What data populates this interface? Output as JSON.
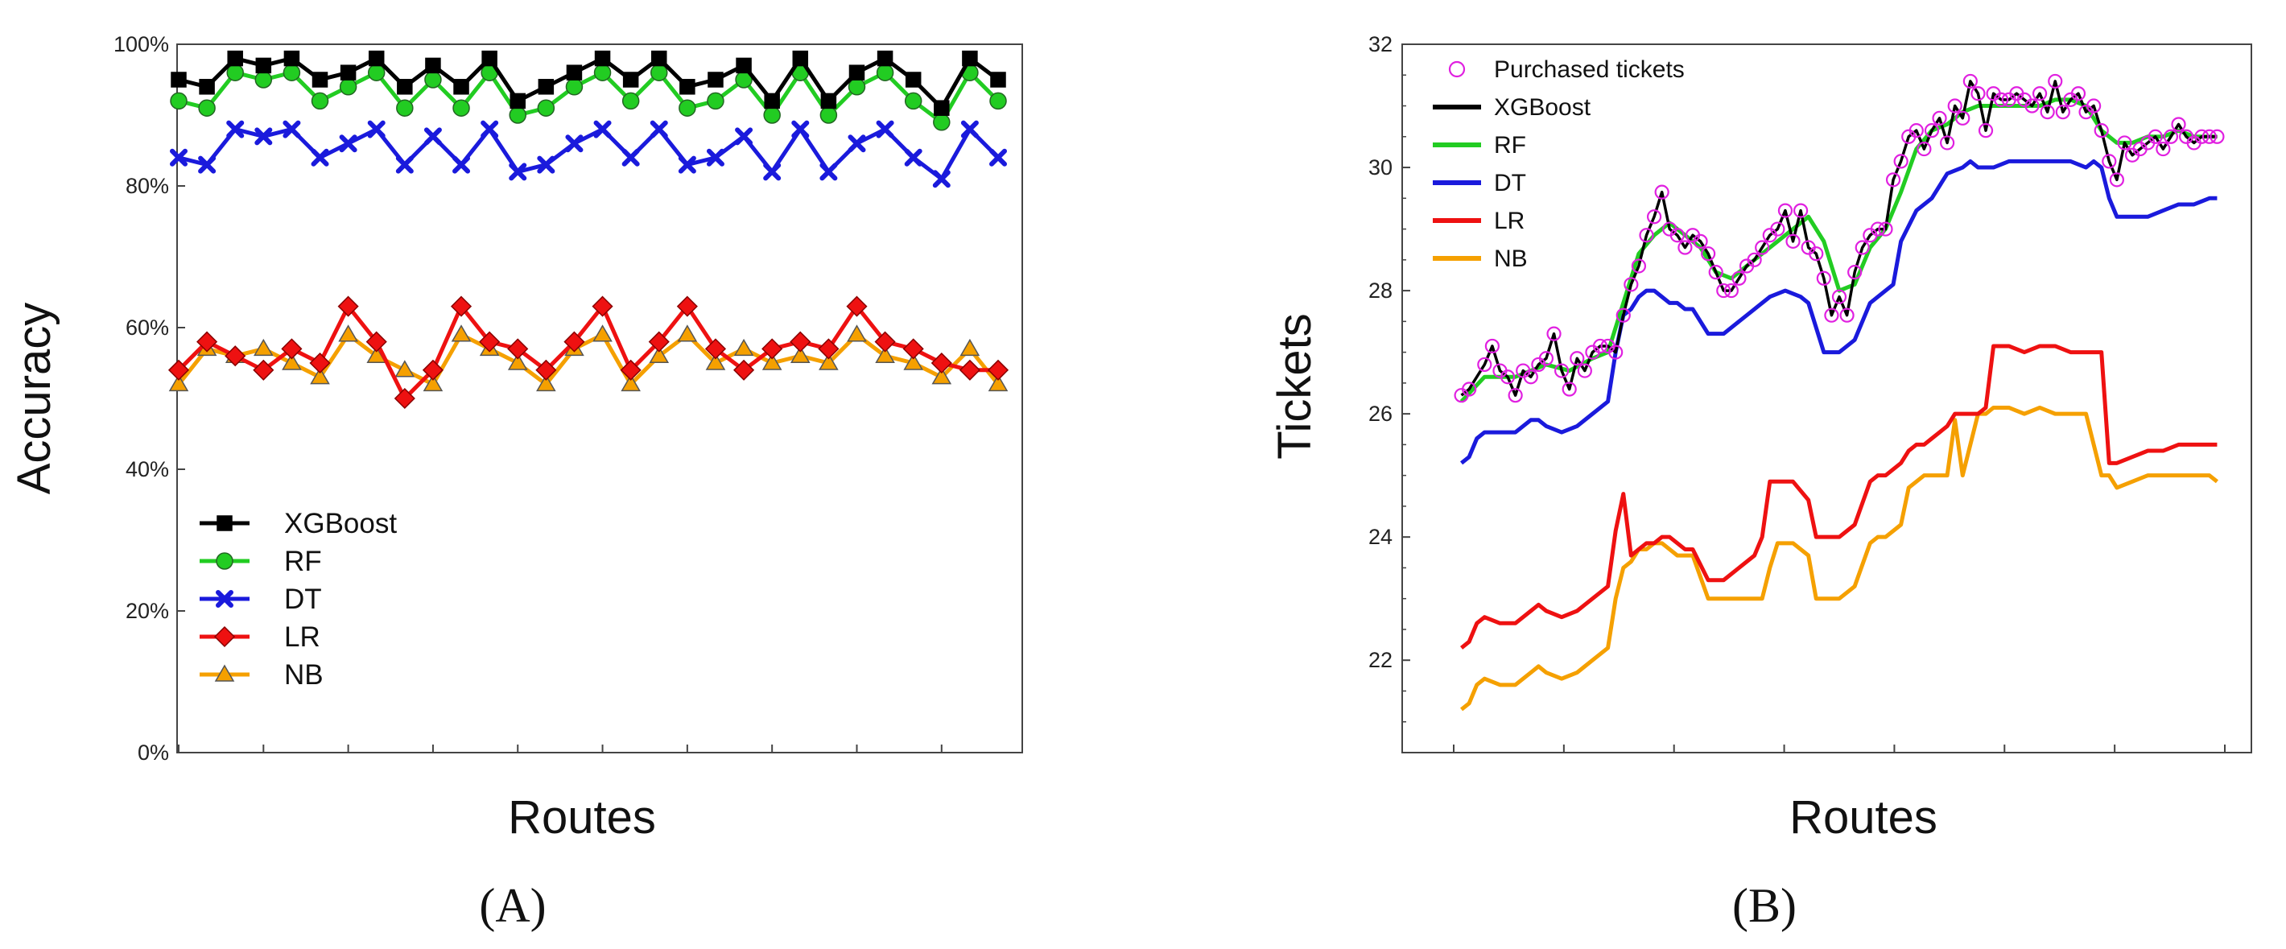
{
  "chart_data": [
    {
      "panel": "A",
      "panel_label": "(A)",
      "type": "line",
      "xlabel": "Routes",
      "ylabel": "Accuracy",
      "ylim": [
        0,
        100
      ],
      "ytick_labels": [
        "0%",
        "20%",
        "40%",
        "60%",
        "80%",
        "100%"
      ],
      "ytick_values": [
        0,
        20,
        40,
        60,
        80,
        100
      ],
      "n_routes": 30,
      "legend_position": "lower-left",
      "series": [
        {
          "name": "XGBoost",
          "color": "#000000",
          "marker": "square",
          "values": [
            95,
            94,
            98,
            97,
            98,
            95,
            96,
            98,
            94,
            97,
            94,
            98,
            92,
            94,
            96,
            98,
            95,
            98,
            94,
            95,
            97,
            92,
            98,
            92,
            96,
            98,
            95,
            91,
            98,
            95
          ]
        },
        {
          "name": "RF",
          "color": "#22cc22",
          "marker": "circle",
          "values": [
            92,
            91,
            96,
            95,
            96,
            92,
            94,
            96,
            91,
            95,
            91,
            96,
            90,
            91,
            94,
            96,
            92,
            96,
            91,
            92,
            95,
            90,
            96,
            90,
            94,
            96,
            92,
            89,
            96,
            92
          ]
        },
        {
          "name": "DT",
          "color": "#1a1adc",
          "marker": "x",
          "values": [
            84,
            83,
            88,
            87,
            88,
            84,
            86,
            88,
            83,
            87,
            83,
            88,
            82,
            83,
            86,
            88,
            84,
            88,
            83,
            84,
            87,
            82,
            88,
            82,
            86,
            88,
            84,
            81,
            88,
            84
          ]
        },
        {
          "name": "LR",
          "color": "#ee1111",
          "marker": "diamond",
          "values": [
            54,
            58,
            56,
            54,
            57,
            55,
            63,
            58,
            50,
            54,
            63,
            58,
            57,
            54,
            58,
            63,
            54,
            58,
            63,
            57,
            54,
            57,
            58,
            57,
            63,
            58,
            57,
            55,
            54,
            54
          ]
        },
        {
          "name": "NB",
          "color": "#f5a000",
          "marker": "triangle",
          "values": [
            52,
            57,
            56,
            57,
            55,
            53,
            59,
            56,
            54,
            52,
            59,
            57,
            55,
            52,
            57,
            59,
            52,
            56,
            59,
            55,
            57,
            55,
            56,
            55,
            59,
            56,
            55,
            53,
            57,
            52
          ]
        }
      ]
    },
    {
      "panel": "B",
      "panel_label": "(B)",
      "type": "line",
      "xlabel": "Routes",
      "ylabel": "Tickets",
      "ylim": [
        20.5,
        32
      ],
      "ytick_labels": [
        "22",
        "24",
        "26",
        "28",
        "30",
        "32"
      ],
      "ytick_values": [
        22,
        24,
        26,
        28,
        30,
        32
      ],
      "xlim": [
        0,
        100
      ],
      "n_xticks": 8,
      "legend_position": "top-left",
      "legend": [
        "Purchased tickets",
        "XGBoost",
        "RF",
        "DT",
        "LR",
        "NB"
      ],
      "purchased": {
        "name": "Purchased tickets",
        "color": "#e020e0",
        "x": [
          1,
          2,
          4,
          5,
          6,
          7,
          8,
          9,
          10,
          11,
          12,
          13,
          14,
          15,
          16,
          17,
          18,
          19,
          20,
          21,
          22,
          23,
          24,
          25,
          26,
          27,
          28,
          29,
          30,
          31,
          32,
          33,
          34,
          35,
          36,
          37,
          38,
          39,
          40,
          41,
          42,
          43,
          44,
          45,
          46,
          47,
          48,
          49,
          50,
          51,
          52,
          53,
          54,
          55,
          56,
          57,
          58,
          59,
          60,
          61,
          62,
          63,
          64,
          65,
          66,
          67,
          68,
          69,
          70,
          71,
          72,
          73,
          74,
          75,
          76,
          77,
          78,
          79,
          80,
          81,
          82,
          83,
          84,
          85,
          86,
          87,
          88,
          89,
          90,
          91,
          92,
          93,
          94,
          95,
          96,
          97,
          98,
          99
        ],
        "y": [
          26.3,
          26.4,
          26.8,
          27.1,
          26.7,
          26.6,
          26.3,
          26.7,
          26.6,
          26.8,
          26.9,
          27.3,
          26.7,
          26.4,
          26.9,
          26.7,
          27.0,
          27.1,
          27.1,
          27.0,
          27.6,
          28.1,
          28.4,
          28.9,
          29.2,
          29.6,
          29.0,
          28.9,
          28.7,
          28.9,
          28.8,
          28.6,
          28.3,
          28.0,
          28.0,
          28.2,
          28.4,
          28.5,
          28.7,
          28.9,
          29.0,
          29.3,
          28.8,
          29.3,
          28.7,
          28.6,
          28.2,
          27.6,
          27.9,
          27.6,
          28.3,
          28.7,
          28.9,
          29.0,
          29.0,
          29.8,
          30.1,
          30.5,
          30.6,
          30.3,
          30.6,
          30.8,
          30.4,
          31.0,
          30.8,
          31.4,
          31.2,
          30.6,
          31.2,
          31.1,
          31.1,
          31.2,
          31.1,
          31.0,
          31.2,
          30.9,
          31.4,
          30.9,
          31.1,
          31.2,
          30.9,
          31.0,
          30.6,
          30.1,
          29.8,
          30.4,
          30.2,
          30.3,
          30.4,
          30.5,
          30.3,
          30.5,
          30.7,
          30.5,
          30.4,
          30.5,
          30.5,
          30.5
        ]
      },
      "series": [
        {
          "name": "XGBoost",
          "color": "#000000",
          "x": [
            1,
            2,
            3,
            4,
            5,
            6,
            7,
            8,
            9,
            10,
            11,
            12,
            13,
            14,
            15,
            16,
            17,
            18,
            19,
            20,
            21,
            22,
            23,
            24,
            25,
            26,
            27,
            28,
            29,
            30,
            31,
            32,
            33,
            34,
            35,
            36,
            37,
            38,
            39,
            40,
            41,
            42,
            43,
            44,
            45,
            46,
            47,
            48,
            49,
            50,
            51,
            52,
            53,
            54,
            55,
            56,
            57,
            58,
            59,
            60,
            61,
            62,
            63,
            64,
            65,
            66,
            67,
            68,
            69,
            70,
            71,
            72,
            73,
            74,
            75,
            76,
            77,
            78,
            79,
            80,
            81,
            82,
            83,
            84,
            85,
            86,
            87,
            88,
            89,
            90,
            91,
            92,
            93,
            94,
            95,
            96,
            97,
            98,
            99
          ],
          "y": [
            26.3,
            26.4,
            26.6,
            26.8,
            27.1,
            26.7,
            26.6,
            26.3,
            26.7,
            26.6,
            26.8,
            26.9,
            27.3,
            26.7,
            26.4,
            26.9,
            26.7,
            27.0,
            27.1,
            27.1,
            27.0,
            27.6,
            28.1,
            28.4,
            28.9,
            29.2,
            29.6,
            29.0,
            28.9,
            28.7,
            28.9,
            28.8,
            28.6,
            28.3,
            28.0,
            28.0,
            28.2,
            28.4,
            28.5,
            28.7,
            28.9,
            29.0,
            29.3,
            28.8,
            29.3,
            28.7,
            28.6,
            28.2,
            27.6,
            27.9,
            27.6,
            28.3,
            28.7,
            28.9,
            29.0,
            29.0,
            29.8,
            30.1,
            30.5,
            30.6,
            30.3,
            30.6,
            30.8,
            30.4,
            31.0,
            30.8,
            31.4,
            31.2,
            30.6,
            31.2,
            31.1,
            31.1,
            31.2,
            31.1,
            31.0,
            31.2,
            30.9,
            31.4,
            30.9,
            31.1,
            31.2,
            30.9,
            31.0,
            30.6,
            30.1,
            29.8,
            30.4,
            30.2,
            30.3,
            30.4,
            30.5,
            30.3,
            30.5,
            30.7,
            30.5,
            30.4,
            30.5,
            30.5,
            30.5
          ]
        },
        {
          "name": "RF",
          "color": "#22cc22",
          "x": [
            1,
            4,
            8,
            12,
            15,
            18,
            20,
            22,
            24,
            26,
            28,
            30,
            32,
            34,
            36,
            38,
            40,
            42,
            44,
            46,
            48,
            50,
            52,
            54,
            56,
            58,
            60,
            62,
            64,
            66,
            68,
            70,
            72,
            74,
            76,
            78,
            80,
            82,
            84,
            86,
            88,
            90,
            92,
            94,
            96,
            98,
            99
          ],
          "y": [
            26.2,
            26.6,
            26.6,
            26.8,
            26.7,
            26.9,
            27.0,
            27.8,
            28.6,
            28.9,
            29.1,
            28.9,
            28.7,
            28.3,
            28.2,
            28.4,
            28.6,
            28.8,
            29.0,
            29.2,
            28.8,
            28.0,
            28.1,
            28.7,
            29.0,
            29.6,
            30.3,
            30.6,
            30.7,
            30.9,
            31.0,
            31.0,
            31.0,
            31.0,
            31.0,
            31.1,
            31.1,
            31.0,
            30.6,
            30.4,
            30.4,
            30.5,
            30.5,
            30.6,
            30.5,
            30.5,
            30.5
          ]
        },
        {
          "name": "DT",
          "color": "#1a1adc",
          "x": [
            1,
            2,
            3,
            4,
            6,
            8,
            10,
            11,
            12,
            14,
            16,
            18,
            20,
            21,
            22,
            23,
            24,
            25,
            26,
            27,
            28,
            29,
            30,
            31,
            33,
            35,
            37,
            39,
            41,
            43,
            45,
            46,
            48,
            49,
            50,
            52,
            54,
            56,
            57,
            58,
            60,
            62,
            64,
            66,
            67,
            68,
            70,
            72,
            74,
            76,
            78,
            80,
            82,
            83,
            84,
            85,
            86,
            88,
            90,
            92,
            94,
            96,
            98,
            99
          ],
          "y": [
            25.2,
            25.3,
            25.6,
            25.7,
            25.7,
            25.7,
            25.9,
            25.9,
            25.8,
            25.7,
            25.8,
            26.0,
            26.2,
            27.0,
            27.6,
            27.7,
            27.9,
            28.0,
            28.0,
            27.9,
            27.8,
            27.8,
            27.7,
            27.7,
            27.3,
            27.3,
            27.5,
            27.7,
            27.9,
            28.0,
            27.9,
            27.8,
            27.0,
            27.0,
            27.0,
            27.2,
            27.8,
            28.0,
            28.1,
            28.8,
            29.3,
            29.5,
            29.9,
            30.0,
            30.1,
            30.0,
            30.0,
            30.1,
            30.1,
            30.1,
            30.1,
            30.1,
            30.0,
            30.1,
            30.0,
            29.5,
            29.2,
            29.2,
            29.2,
            29.3,
            29.4,
            29.4,
            29.5,
            29.5
          ]
        },
        {
          "name": "LR",
          "color": "#ee1111",
          "x": [
            1,
            2,
            3,
            4,
            6,
            8,
            10,
            11,
            12,
            14,
            16,
            17,
            18,
            20,
            21,
            22,
            23,
            24,
            25,
            26,
            27,
            28,
            29,
            30,
            31,
            33,
            35,
            37,
            39,
            40,
            41,
            42,
            43,
            44,
            46,
            47,
            48,
            50,
            52,
            54,
            55,
            56,
            58,
            59,
            60,
            61,
            62,
            64,
            65,
            66,
            68,
            69,
            70,
            72,
            74,
            76,
            78,
            80,
            82,
            84,
            85,
            86,
            88,
            90,
            92,
            94,
            96,
            98,
            99
          ],
          "y": [
            22.2,
            22.3,
            22.6,
            22.7,
            22.6,
            22.6,
            22.8,
            22.9,
            22.8,
            22.7,
            22.8,
            22.9,
            23.0,
            23.2,
            24.1,
            24.7,
            23.7,
            23.8,
            23.9,
            23.9,
            24.0,
            24.0,
            23.9,
            23.8,
            23.8,
            23.3,
            23.3,
            23.5,
            23.7,
            24.0,
            24.9,
            24.9,
            24.9,
            24.9,
            24.6,
            24.0,
            24.0,
            24.0,
            24.2,
            24.9,
            25.0,
            25.0,
            25.2,
            25.4,
            25.5,
            25.5,
            25.6,
            25.8,
            26.0,
            26.0,
            26.0,
            26.1,
            27.1,
            27.1,
            27.0,
            27.1,
            27.1,
            27.0,
            27.0,
            27.0,
            25.2,
            25.2,
            25.3,
            25.4,
            25.4,
            25.5,
            25.5,
            25.5,
            25.5
          ]
        },
        {
          "name": "NB",
          "color": "#f5a000",
          "x": [
            1,
            2,
            3,
            4,
            6,
            8,
            10,
            11,
            12,
            14,
            16,
            17,
            18,
            20,
            21,
            22,
            23,
            24,
            25,
            26,
            27,
            28,
            29,
            30,
            31,
            33,
            35,
            37,
            39,
            40,
            41,
            42,
            43,
            44,
            46,
            47,
            48,
            50,
            52,
            54,
            55,
            56,
            58,
            59,
            60,
            61,
            62,
            63,
            64,
            65,
            66,
            68,
            69,
            70,
            72,
            74,
            76,
            78,
            80,
            82,
            84,
            85,
            86,
            88,
            90,
            92,
            94,
            96,
            98,
            99
          ],
          "y": [
            21.2,
            21.3,
            21.6,
            21.7,
            21.6,
            21.6,
            21.8,
            21.9,
            21.8,
            21.7,
            21.8,
            21.9,
            22.0,
            22.2,
            23.0,
            23.5,
            23.6,
            23.8,
            23.8,
            23.9,
            23.9,
            23.8,
            23.7,
            23.7,
            23.7,
            23.0,
            23.0,
            23.0,
            23.0,
            23.0,
            23.5,
            23.9,
            23.9,
            23.9,
            23.7,
            23.0,
            23.0,
            23.0,
            23.2,
            23.9,
            24.0,
            24.0,
            24.2,
            24.8,
            24.9,
            25.0,
            25.0,
            25.0,
            25.0,
            25.9,
            25.0,
            26.0,
            26.0,
            26.1,
            26.1,
            26.0,
            26.1,
            26.0,
            26.0,
            26.0,
            25.0,
            25.0,
            24.8,
            24.9,
            25.0,
            25.0,
            25.0,
            25.0,
            25.0,
            24.9
          ]
        }
      ]
    }
  ]
}
